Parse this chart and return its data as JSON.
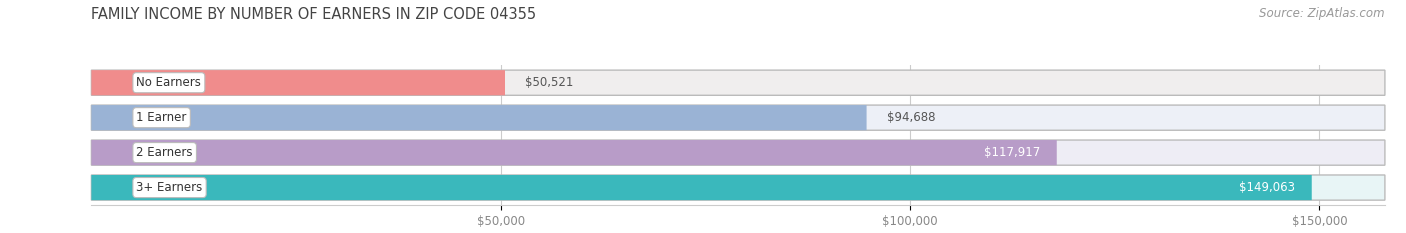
{
  "title": "FAMILY INCOME BY NUMBER OF EARNERS IN ZIP CODE 04355",
  "source": "Source: ZipAtlas.com",
  "categories": [
    "No Earners",
    "1 Earner",
    "2 Earners",
    "3+ Earners"
  ],
  "values": [
    50521,
    94688,
    117917,
    149063
  ],
  "bar_colors": [
    "#f08c8c",
    "#9ab3d5",
    "#b89cc8",
    "#3ab8bc"
  ],
  "bg_colors": [
    "#f0eeee",
    "#edf0f7",
    "#eeedf5",
    "#e8f5f6"
  ],
  "value_inside": [
    false,
    false,
    true,
    true
  ],
  "xlim_max": 158000,
  "xticks": [
    50000,
    100000,
    150000
  ],
  "xtick_labels": [
    "$50,000",
    "$100,000",
    "$150,000"
  ],
  "figsize": [
    14.06,
    2.33
  ],
  "dpi": 100,
  "background": "#ffffff",
  "title_color": "#444444",
  "source_color": "#999999",
  "tick_color": "#888888",
  "grid_color": "#cccccc",
  "label_bg_color": "#ffffff",
  "label_edge_color": "#bbbbbb",
  "value_outside_color": "#555555",
  "value_inside_color": "#ffffff"
}
